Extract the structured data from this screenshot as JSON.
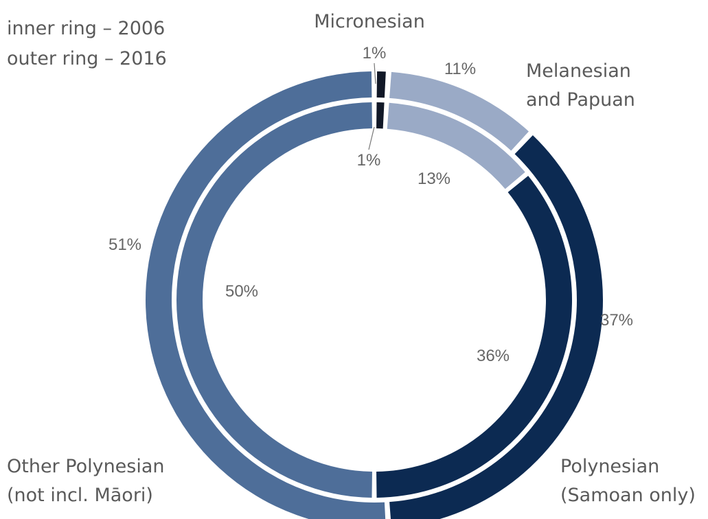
{
  "chart_data": {
    "type": "donut",
    "legend": {
      "inner": "inner ring – 2006",
      "outer": "outer ring – 2016"
    },
    "categories": [
      {
        "key": "micronesian",
        "label_lines": [
          "Micronesian"
        ],
        "color": "#111827"
      },
      {
        "key": "melanesian",
        "label_lines": [
          "Melanesian",
          "and Papuan"
        ],
        "color": "#9aaac6"
      },
      {
        "key": "samoan",
        "label_lines": [
          "Polynesian",
          "(Samoan only)"
        ],
        "color": "#0c2a52"
      },
      {
        "key": "other_polynesian",
        "label_lines": [
          "Other Polynesian",
          "(not incl. Māori)"
        ],
        "color": "#4e6e99"
      }
    ],
    "rings": [
      {
        "name": "2006",
        "ring": "inner",
        "values": {
          "micronesian": 1,
          "melanesian": 13,
          "samoan": 36,
          "other_polynesian": 50
        },
        "labels": {
          "micronesian": "1%",
          "melanesian": "13%",
          "samoan": "36%",
          "other_polynesian": "50%"
        }
      },
      {
        "name": "2016",
        "ring": "outer",
        "values": {
          "micronesian": 1,
          "melanesian": 11,
          "samoan": 37,
          "other_polynesian": 51
        },
        "labels": {
          "micronesian": "1%",
          "melanesian": "11%",
          "samoan": "37%",
          "other_polynesian": "51%"
        }
      }
    ]
  }
}
